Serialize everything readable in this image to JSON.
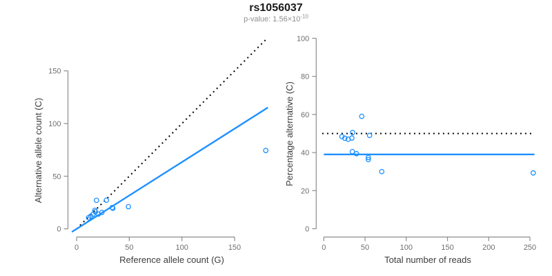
{
  "header": {
    "title": "rs1056037",
    "pvalue": {
      "prefix": "p-value: ",
      "base": "1.56×10",
      "exponent": "-10"
    }
  },
  "colors": {
    "accent": "#1E90FF",
    "axis": "#8c8c8c",
    "tick_text": "#6e6e6e",
    "axis_title_text": "#3d3d3d",
    "title_text": "#1a1a1a",
    "subtitle_text": "#8f8f8f"
  },
  "chart_data": [
    {
      "type": "scatter",
      "title": "",
      "xlabel": "Reference allele count (G)",
      "ylabel": "Alternative allele count (C)",
      "xticks": [
        0,
        50,
        100,
        150
      ],
      "yticks": [
        0,
        50,
        100,
        150
      ],
      "xlim": [
        0,
        185
      ],
      "ylim": [
        0,
        185
      ],
      "grid": false,
      "legend": "none",
      "marker": "open-circle",
      "points": [
        [
          18.9,
          27.1
        ],
        [
          11.4,
          10.6
        ],
        [
          13.4,
          12.1
        ],
        [
          15.6,
          13.9
        ],
        [
          17.8,
          16.2
        ],
        [
          17.3,
          17.6
        ],
        [
          20.6,
          14.0
        ],
        [
          24.0,
          15.6
        ],
        [
          28.3,
          27.2
        ],
        [
          33.8,
          20.2
        ],
        [
          34.4,
          19.6
        ],
        [
          49.2,
          21.1
        ],
        [
          179.6,
          74.4
        ]
      ],
      "lines": [
        {
          "name": "identity-line-y-equals-x",
          "style": "dotted",
          "color": "#000000",
          "from": [
            0,
            0
          ],
          "to": [
            181,
            181
          ]
        },
        {
          "name": "fitted-proportion-line",
          "style": "solid",
          "color": "#1E90FF",
          "from": [
            -4.5,
            -2.9
          ],
          "to": [
            181.6,
            115.2
          ]
        }
      ]
    },
    {
      "type": "scatter",
      "title": "",
      "xlabel": "Total number of reads",
      "ylabel": "Percentage alternative (C)",
      "xticks": [
        0,
        50,
        100,
        150,
        200,
        250
      ],
      "yticks": [
        0,
        20,
        40,
        60,
        80,
        100
      ],
      "xlim": [
        0,
        256
      ],
      "ylim": [
        0,
        100
      ],
      "grid": false,
      "legend": "none",
      "marker": "open-circle",
      "points": [
        [
          46,
          59
        ],
        [
          22,
          48.4
        ],
        [
          25.5,
          47.5
        ],
        [
          29.5,
          47.0
        ],
        [
          34,
          47.6
        ],
        [
          34.9,
          50.5
        ],
        [
          34.6,
          40.5
        ],
        [
          39.6,
          39.4
        ],
        [
          55.5,
          49.0
        ],
        [
          54,
          37.4
        ],
        [
          54,
          36.3
        ],
        [
          70.3,
          30.0
        ],
        [
          254,
          29.3
        ]
      ],
      "lines": [
        {
          "name": "expected-50-percent-line",
          "style": "dotted",
          "color": "#000000",
          "from": [
            -2,
            50
          ],
          "to": [
            255,
            50
          ]
        },
        {
          "name": "fitted-percentage-line",
          "style": "solid",
          "color": "#1E90FF",
          "from": [
            0,
            39
          ],
          "to": [
            255.5,
            39
          ]
        }
      ]
    }
  ]
}
